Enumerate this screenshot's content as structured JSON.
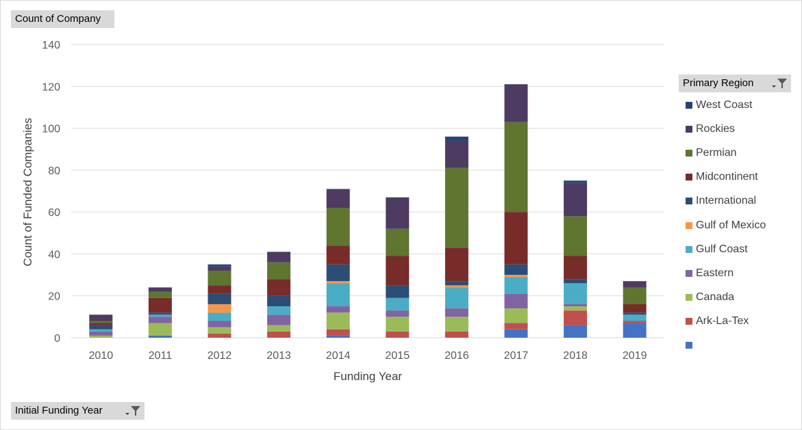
{
  "buttons": {
    "value_field": "Count of Company",
    "legend_field": "Primary Region",
    "axis_field": "Initial Funding Year"
  },
  "chart_data": {
    "type": "bar",
    "stacked": true,
    "title": "",
    "xlabel": "Funding Year",
    "ylabel": "Count of Funded Companies",
    "ylim": [
      0,
      140
    ],
    "yticks": [
      0,
      20,
      40,
      60,
      80,
      100,
      120,
      140
    ],
    "grid": true,
    "legend_position": "right",
    "categories": [
      "2010",
      "2011",
      "2012",
      "2013",
      "2014",
      "2015",
      "2016",
      "2017",
      "2018",
      "2019"
    ],
    "series": [
      {
        "name": "",
        "color": "#4472c4",
        "values": [
          0,
          1,
          0,
          0,
          1,
          0,
          0,
          4,
          6,
          7
        ]
      },
      {
        "name": "Ark-La-Tex",
        "color": "#c0504d",
        "values": [
          0,
          0,
          2,
          3,
          3,
          3,
          3,
          3,
          7,
          1
        ]
      },
      {
        "name": "Canada",
        "color": "#9bbb59",
        "values": [
          1,
          6,
          3,
          3,
          8,
          7,
          7,
          7,
          2,
          0
        ]
      },
      {
        "name": "Eastern",
        "color": "#8064a2",
        "values": [
          2,
          3,
          3,
          5,
          3,
          3,
          4,
          7,
          1,
          0
        ]
      },
      {
        "name": "Gulf Coast",
        "color": "#4bacc6",
        "values": [
          1,
          1,
          4,
          4,
          11,
          6,
          10,
          8,
          10,
          3
        ]
      },
      {
        "name": "Gulf of Mexico",
        "color": "#f79646",
        "values": [
          0,
          0,
          4,
          0,
          1,
          0,
          1,
          1,
          0,
          0
        ]
      },
      {
        "name": "International",
        "color": "#2c4d75",
        "values": [
          2,
          1,
          5,
          5,
          8,
          6,
          2,
          5,
          2,
          1
        ]
      },
      {
        "name": "Midcontinent",
        "color": "#772c2a",
        "values": [
          1,
          7,
          4,
          8,
          9,
          14,
          16,
          25,
          11,
          4
        ]
      },
      {
        "name": "Permian",
        "color": "#5f7530",
        "values": [
          1,
          3,
          7,
          8,
          18,
          13,
          38,
          43,
          19,
          8
        ]
      },
      {
        "name": "Rockies",
        "color": "#4d3b62",
        "values": [
          3,
          2,
          2,
          5,
          9,
          15,
          13,
          18,
          16,
          3
        ]
      },
      {
        "name": "West Coast",
        "color": "#264478",
        "values": [
          0,
          0,
          1,
          0,
          0,
          0,
          2,
          0,
          1,
          0
        ]
      }
    ]
  }
}
